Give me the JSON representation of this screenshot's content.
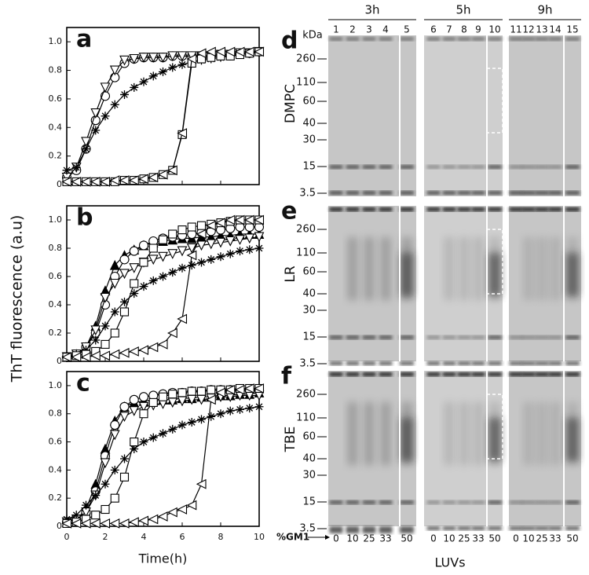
{
  "chart_data": [
    {
      "type": "line",
      "panel_label": "a",
      "ylabel": "ThT fluorescence (a.u)",
      "x": [
        0,
        0.5,
        1,
        1.5,
        2,
        2.5,
        3,
        3.5,
        4,
        4.5,
        5,
        5.5,
        6,
        6.5,
        7,
        7.5,
        8,
        8.5,
        9,
        9.5,
        10
      ],
      "xlim": [
        0,
        10
      ],
      "xticks": [
        0,
        2,
        4,
        6,
        8,
        10
      ],
      "show_xtick_labels": false,
      "ylim": [
        0,
        1.1
      ],
      "yticks": [
        0,
        0.2,
        0.4,
        0.6,
        0.8,
        {
          "value": 1,
          "label": "1.0"
        }
      ],
      "series": [
        {
          "marker": "circle",
          "color": "#000",
          "values": [
            0.05,
            0.1,
            0.25,
            0.45,
            0.62,
            0.75,
            0.85,
            0.88,
            0.89,
            0.89,
            0.89,
            0.9,
            0.9,
            0.9,
            0.9,
            0.9,
            0.91,
            0.91,
            0.92,
            0.92,
            0.93
          ]
        },
        {
          "marker": "triangle-down",
          "color": "#000",
          "values": [
            0.05,
            0.12,
            0.3,
            0.5,
            0.68,
            0.8,
            0.87,
            0.88,
            0.89,
            0.89,
            0.89,
            0.9,
            0.9,
            0.9,
            0.9,
            0.9,
            0.91,
            0.91,
            0.92,
            0.92,
            0.93
          ]
        },
        {
          "marker": "star",
          "color": "#000",
          "values": [
            0.1,
            0.12,
            0.25,
            0.38,
            0.48,
            0.56,
            0.63,
            0.68,
            0.72,
            0.76,
            0.79,
            0.82,
            0.84,
            0.86,
            0.87,
            0.88,
            0.89,
            0.9,
            0.91,
            0.92,
            0.93
          ]
        },
        {
          "marker": "square",
          "color": "#000",
          "values": [
            0.02,
            0.02,
            0.02,
            0.02,
            0.02,
            0.02,
            0.03,
            0.03,
            0.04,
            0.05,
            0.07,
            0.1,
            0.35,
            0.85,
            0.88,
            0.89,
            0.9,
            0.9,
            0.91,
            0.92,
            0.93
          ]
        },
        {
          "marker": "triangle-left",
          "color": "#000",
          "values": [
            0.02,
            0.02,
            0.02,
            0.02,
            0.02,
            0.03,
            0.03,
            0.03,
            0.04,
            0.05,
            0.07,
            0.1,
            0.36,
            0.88,
            0.92,
            0.93,
            0.93,
            0.93,
            0.93,
            0.93,
            0.93
          ]
        }
      ]
    },
    {
      "type": "line",
      "panel_label": "b",
      "x": [
        0,
        0.5,
        1,
        1.5,
        2,
        2.5,
        3,
        3.5,
        4,
        4.5,
        5,
        5.5,
        6,
        6.5,
        7,
        7.5,
        8,
        8.5,
        9,
        9.5,
        10
      ],
      "xlim": [
        0,
        10
      ],
      "xticks": [
        0,
        2,
        4,
        6,
        8,
        10
      ],
      "show_xtick_labels": false,
      "ylim": [
        0,
        1.1
      ],
      "yticks": [
        0,
        0.2,
        0.4,
        0.6,
        0.8,
        {
          "value": 1,
          "label": "1.0"
        }
      ],
      "series": [
        {
          "marker": "triangle-up-filled",
          "color": "#000",
          "values": [
            0.03,
            0.05,
            0.1,
            0.25,
            0.5,
            0.68,
            0.75,
            0.79,
            0.82,
            0.84,
            0.85,
            0.86,
            0.87,
            0.87,
            0.88,
            0.88,
            0.89,
            0.89,
            0.9,
            0.9,
            0.9
          ]
        },
        {
          "marker": "circle",
          "color": "#000",
          "values": [
            0.03,
            0.05,
            0.1,
            0.2,
            0.4,
            0.6,
            0.72,
            0.78,
            0.82,
            0.85,
            0.87,
            0.88,
            0.89,
            0.9,
            0.91,
            0.92,
            0.93,
            0.94,
            0.95,
            0.95,
            0.95
          ]
        },
        {
          "marker": "triangle-down",
          "color": "#000",
          "values": [
            0.03,
            0.05,
            0.1,
            0.22,
            0.45,
            0.55,
            0.62,
            0.66,
            0.7,
            0.72,
            0.74,
            0.76,
            0.78,
            0.8,
            0.82,
            0.83,
            0.84,
            0.85,
            0.86,
            0.87,
            0.88
          ]
        },
        {
          "marker": "star",
          "color": "#000",
          "values": [
            0.03,
            0.05,
            0.08,
            0.15,
            0.25,
            0.35,
            0.42,
            0.48,
            0.53,
            0.57,
            0.6,
            0.63,
            0.66,
            0.68,
            0.7,
            0.72,
            0.74,
            0.76,
            0.78,
            0.79,
            0.8
          ]
        },
        {
          "marker": "square",
          "color": "#000",
          "values": [
            0.03,
            0.04,
            0.05,
            0.07,
            0.12,
            0.2,
            0.35,
            0.55,
            0.7,
            0.8,
            0.86,
            0.9,
            0.93,
            0.95,
            0.96,
            0.97,
            0.98,
            0.99,
            1.0,
            1.0,
            1.0
          ]
        },
        {
          "marker": "triangle-left",
          "color": "#000",
          "values": [
            0.03,
            0.03,
            0.03,
            0.04,
            0.04,
            0.05,
            0.06,
            0.07,
            0.08,
            0.1,
            0.12,
            0.2,
            0.3,
            0.75,
            0.9,
            0.96,
            0.98,
            1.0,
            1.0,
            1.0,
            1.0
          ]
        }
      ]
    },
    {
      "type": "line",
      "panel_label": "c",
      "xlabel": "Time(h)",
      "x": [
        0,
        0.5,
        1,
        1.5,
        2,
        2.5,
        3,
        3.5,
        4,
        4.5,
        5,
        5.5,
        6,
        6.5,
        7,
        7.5,
        8,
        8.5,
        9,
        9.5,
        10
      ],
      "xlim": [
        0,
        10
      ],
      "xticks": [
        0,
        2,
        4,
        6,
        8,
        10
      ],
      "show_xtick_labels": true,
      "ylim": [
        0,
        1.1
      ],
      "yticks": [
        0,
        0.2,
        0.4,
        0.6,
        0.8,
        {
          "value": 1,
          "label": "1.0"
        }
      ],
      "series": [
        {
          "marker": "triangle-up-filled",
          "color": "#000",
          "values": [
            0.03,
            0.05,
            0.12,
            0.3,
            0.55,
            0.75,
            0.85,
            0.88,
            0.89,
            0.9,
            0.9,
            0.9,
            0.91,
            0.91,
            0.92,
            0.92,
            0.93,
            0.93,
            0.94,
            0.94,
            0.95
          ]
        },
        {
          "marker": "circle",
          "color": "#000",
          "values": [
            0.03,
            0.05,
            0.1,
            0.25,
            0.5,
            0.72,
            0.85,
            0.9,
            0.92,
            0.93,
            0.94,
            0.95,
            0.95,
            0.96,
            0.96,
            0.97,
            0.97,
            0.97,
            0.97,
            0.97,
            0.97
          ]
        },
        {
          "marker": "triangle-down",
          "color": "#000",
          "values": [
            0.03,
            0.05,
            0.1,
            0.22,
            0.45,
            0.65,
            0.78,
            0.82,
            0.85,
            0.86,
            0.87,
            0.88,
            0.89,
            0.9,
            0.9,
            0.91,
            0.92,
            0.92,
            0.93,
            0.93,
            0.93
          ]
        },
        {
          "marker": "star",
          "color": "#000",
          "values": [
            0.05,
            0.08,
            0.15,
            0.22,
            0.3,
            0.4,
            0.48,
            0.55,
            0.6,
            0.63,
            0.66,
            0.69,
            0.72,
            0.74,
            0.76,
            0.78,
            0.8,
            0.82,
            0.83,
            0.84,
            0.85
          ]
        },
        {
          "marker": "square",
          "color": "#000",
          "values": [
            0.02,
            0.03,
            0.05,
            0.08,
            0.12,
            0.2,
            0.35,
            0.6,
            0.8,
            0.88,
            0.92,
            0.94,
            0.95,
            0.96,
            0.96,
            0.97,
            0.97,
            0.97,
            0.98,
            0.98,
            0.98
          ]
        },
        {
          "marker": "triangle-left",
          "color": "#000",
          "values": [
            0.02,
            0.02,
            0.02,
            0.02,
            0.02,
            0.02,
            0.02,
            0.03,
            0.04,
            0.05,
            0.07,
            0.1,
            0.12,
            0.15,
            0.3,
            0.9,
            0.95,
            0.97,
            0.97,
            0.98,
            0.98
          ]
        }
      ]
    }
  ],
  "gels": {
    "kda": "kDa",
    "times": [
      "3h",
      "5h",
      "9h"
    ],
    "lanes": [
      "1",
      "2",
      "3",
      "4",
      "5",
      "6",
      "7",
      "8",
      "9",
      "10",
      "11",
      "12",
      "13",
      "14",
      "15"
    ],
    "rows": [
      {
        "panel_label": "d",
        "lipid": "DMPC",
        "mw": [
          "260",
          "110",
          "60",
          "40",
          "30",
          "15",
          "3.5"
        ]
      },
      {
        "panel_label": "e",
        "lipid": "LR",
        "mw": [
          "260",
          "110",
          "60",
          "40",
          "30",
          "15",
          "3.5"
        ]
      },
      {
        "panel_label": "f",
        "lipid": "TBE",
        "mw": [
          "260",
          "110",
          "60",
          "40",
          "30",
          "15",
          "3.5"
        ]
      }
    ],
    "gm1_label": "%GM1",
    "gm1": [
      [
        "0",
        "10",
        "25",
        "33",
        "50"
      ],
      [
        "0",
        "10",
        "25",
        "33",
        "50"
      ],
      [
        "0",
        "10",
        "25",
        "33",
        "50"
      ]
    ],
    "xlabel": "LUVs"
  }
}
